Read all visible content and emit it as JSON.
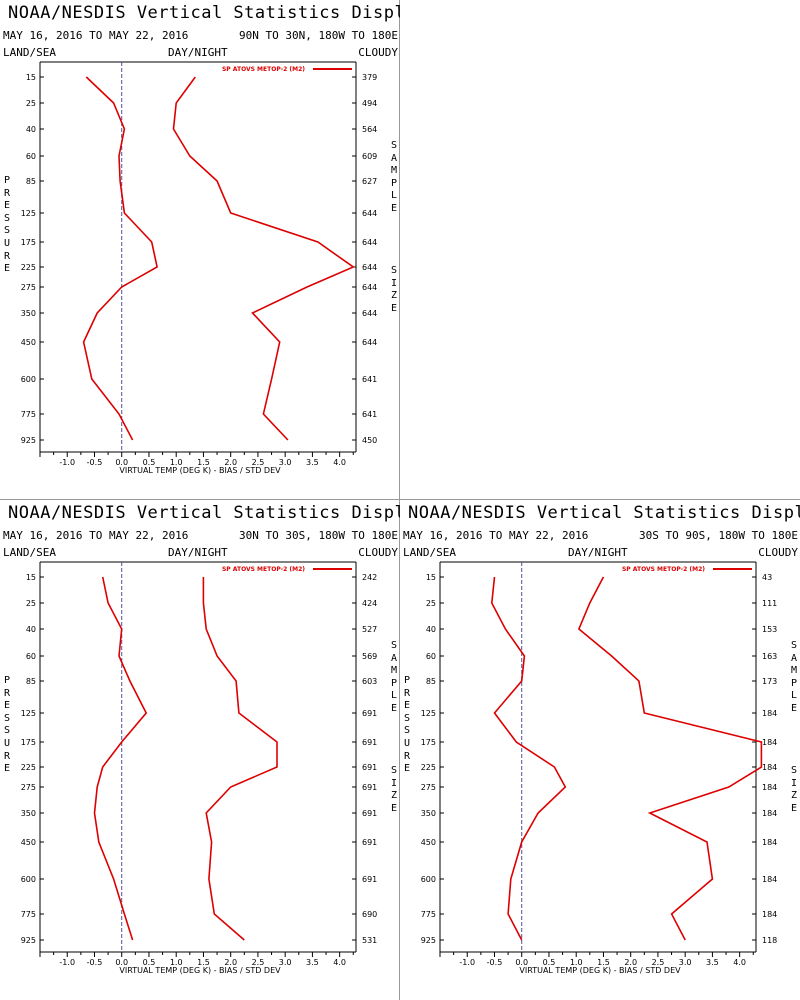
{
  "panels": [
    {
      "title": "NOAA/NESDIS Vertical Statistics Display",
      "date_range": "MAY 16, 2016 TO MAY 22, 2016",
      "region": "90N TO 30N, 180W TO 180E",
      "left_label": "LAND/SEA",
      "center_label": "DAY/NIGHT",
      "right_label": "CLOUDY",
      "ylabel": "PRESSURE",
      "right_axis_label_1": "SAMPLE",
      "right_axis_label_2": "SIZE",
      "xlabel": "VIRTUAL TEMP (DEG K) - BIAS / STD DEV",
      "legend": "SP ATOVS METOP-2 (M2)"
    },
    {
      "title": "NOAA/NESDIS Vertical Statistics Display",
      "date_range": "MAY 16, 2016 TO MAY 22, 2016",
      "region": "30N TO 30S, 180W TO 180E",
      "left_label": "LAND/SEA",
      "center_label": "DAY/NIGHT",
      "right_label": "CLOUDY",
      "ylabel": "PRESSURE",
      "right_axis_label_1": "SAMPLE",
      "right_axis_label_2": "SIZE",
      "xlabel": "VIRTUAL TEMP (DEG K) - BIAS / STD DEV",
      "legend": "SP ATOVS METOP-2 (M2)"
    },
    {
      "title": "NOAA/NESDIS Vertical Statistics Display",
      "date_range": "MAY 16, 2016 TO MAY 22, 2016",
      "region": "30S TO 90S, 180W TO 180E",
      "left_label": "LAND/SEA",
      "center_label": "DAY/NIGHT",
      "right_label": "CLOUDY",
      "ylabel": "PRESSURE",
      "right_axis_label_1": "SAMPLE",
      "right_axis_label_2": "SIZE",
      "xlabel": "VIRTUAL TEMP (DEG K) - BIAS / STD DEV",
      "legend": "SP ATOVS METOP-2 (M2)"
    }
  ],
  "colors": {
    "series": "#dd0000",
    "axis": "#000000",
    "zero_line": "#5050a0"
  },
  "chart_data": [
    {
      "type": "line",
      "x_ticks": [
        "-1.0",
        "-0.5",
        "0.0",
        "0.5",
        "1.0",
        "1.5",
        "2.0",
        "2.5",
        "3.0",
        "3.5",
        "4.0"
      ],
      "xlim": [
        -1.5,
        4.3
      ],
      "pressure_levels": [
        "15",
        "25",
        "40",
        "60",
        "85",
        "125",
        "175",
        "225",
        "275",
        "350",
        "450",
        "600",
        "775",
        "925"
      ],
      "sample_size": [
        "379",
        "494",
        "564",
        "609",
        "627",
        "644",
        "644",
        "644",
        "644",
        "644",
        "644",
        "641",
        "641",
        "450"
      ],
      "series": [
        {
          "values": [
            -0.65,
            -0.15,
            0.05,
            -0.05,
            -0.03,
            0.05,
            0.55,
            0.65,
            0.0,
            -0.45,
            -0.7,
            -0.55,
            -0.05,
            0.2
          ]
        },
        {
          "values": [
            1.35,
            1.0,
            0.95,
            1.25,
            1.75,
            2.0,
            3.6,
            4.25,
            3.4,
            2.4,
            2.9,
            2.75,
            2.6,
            3.05
          ]
        }
      ]
    },
    {
      "type": "line",
      "x_ticks": [
        "-1.0",
        "-0.5",
        "0.0",
        "0.5",
        "1.0",
        "1.5",
        "2.0",
        "2.5",
        "3.0",
        "3.5",
        "4.0"
      ],
      "xlim": [
        -1.5,
        4.3
      ],
      "pressure_levels": [
        "15",
        "25",
        "40",
        "60",
        "85",
        "125",
        "175",
        "225",
        "275",
        "350",
        "450",
        "600",
        "775",
        "925"
      ],
      "sample_size": [
        "242",
        "424",
        "527",
        "569",
        "603",
        "691",
        "691",
        "691",
        "691",
        "691",
        "691",
        "691",
        "690",
        "531"
      ],
      "series": [
        {
          "values": [
            -0.35,
            -0.25,
            0.0,
            -0.05,
            0.15,
            0.45,
            0.0,
            -0.35,
            -0.45,
            -0.5,
            -0.42,
            -0.15,
            0.05,
            0.2
          ]
        },
        {
          "values": [
            1.5,
            1.5,
            1.55,
            1.75,
            2.1,
            2.15,
            2.85,
            2.85,
            2.0,
            1.55,
            1.65,
            1.6,
            1.7,
            2.25
          ]
        }
      ]
    },
    {
      "type": "line",
      "x_ticks": [
        "-1.0",
        "-0.5",
        "0.0",
        "0.5",
        "1.0",
        "1.5",
        "2.0",
        "2.5",
        "3.0",
        "3.5",
        "4.0"
      ],
      "xlim": [
        -1.5,
        4.3
      ],
      "pressure_levels": [
        "15",
        "25",
        "40",
        "60",
        "85",
        "125",
        "175",
        "225",
        "275",
        "350",
        "450",
        "600",
        "775",
        "925"
      ],
      "sample_size": [
        "43",
        "111",
        "153",
        "163",
        "173",
        "184",
        "184",
        "184",
        "184",
        "184",
        "184",
        "184",
        "184",
        "118"
      ],
      "series": [
        {
          "values": [
            -0.5,
            -0.55,
            -0.3,
            0.05,
            0.0,
            -0.5,
            -0.1,
            0.6,
            0.8,
            0.3,
            0.0,
            -0.2,
            -0.25,
            0.0
          ]
        },
        {
          "values": [
            1.5,
            1.25,
            1.05,
            1.65,
            2.15,
            2.25,
            4.4,
            4.4,
            3.8,
            2.35,
            3.4,
            3.5,
            2.75,
            3.0
          ]
        }
      ]
    }
  ]
}
